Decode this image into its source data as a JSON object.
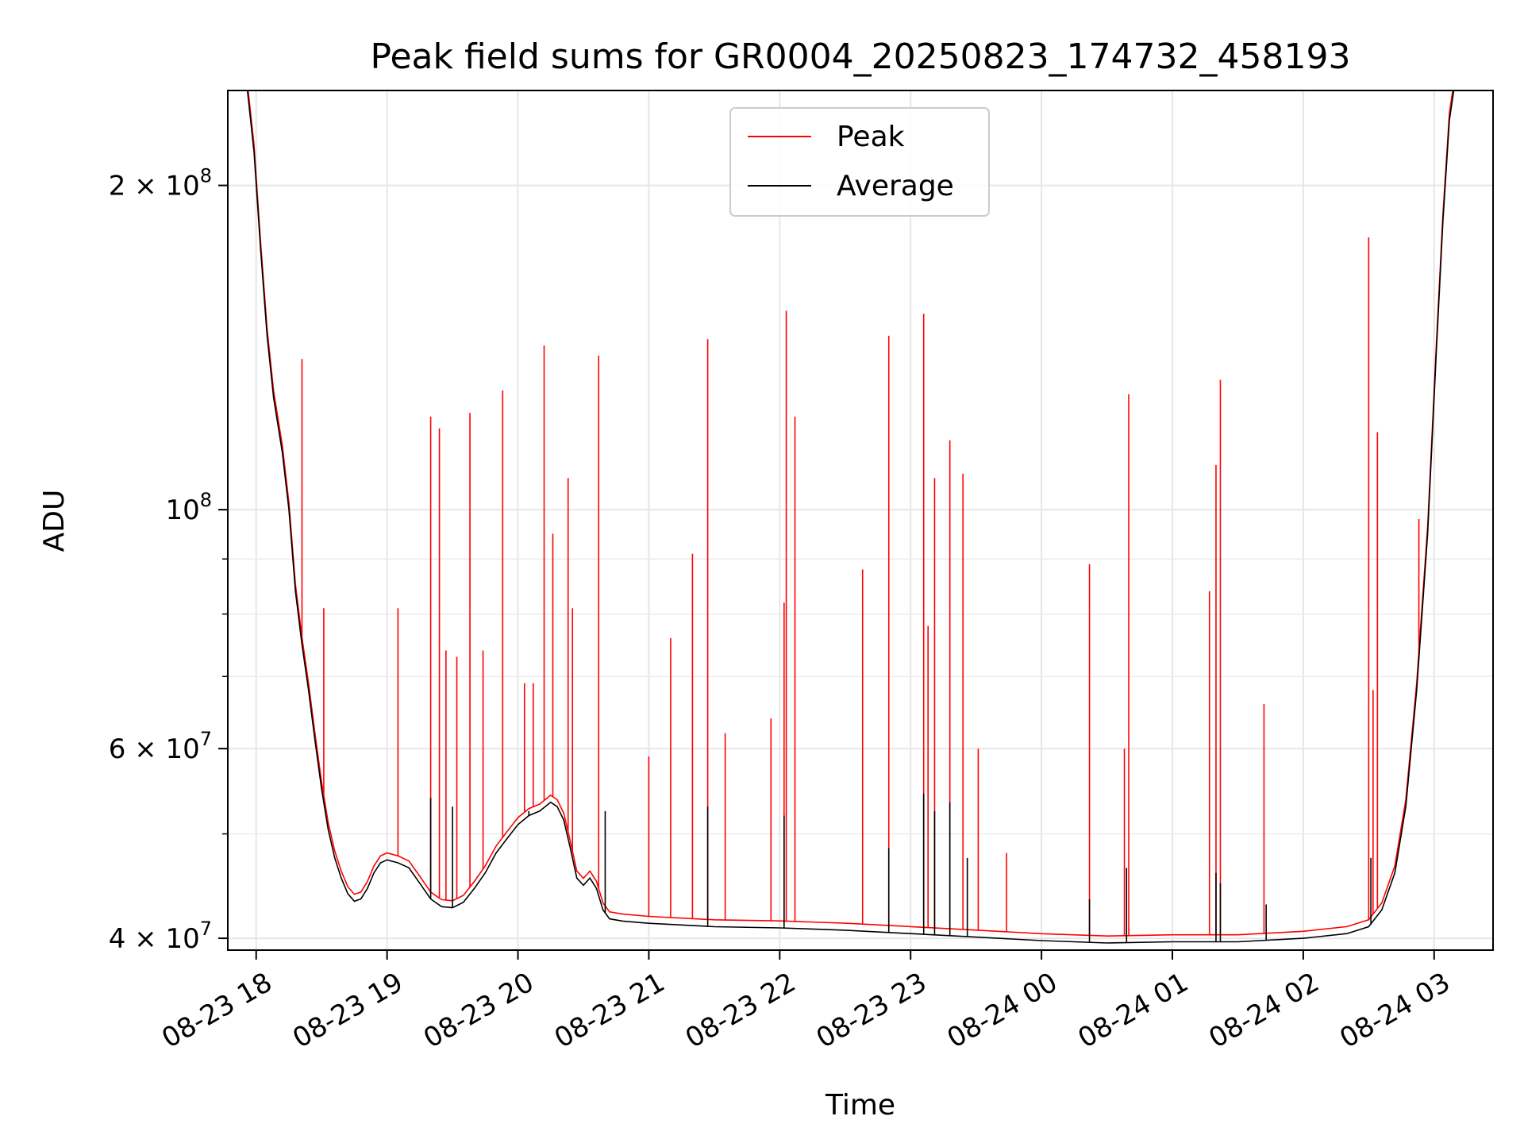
{
  "chart_data": {
    "type": "line",
    "title": "Peak field sums for GR0004_20250823_174732_458193",
    "xlabel": "Time",
    "ylabel": "ADU",
    "yscale": "log",
    "xlim": [
      "2025-08-23 17:47",
      "2025-08-24 03:27"
    ],
    "ylim": [
      39000000,
      245000000
    ],
    "grid": true,
    "legend_position": "top-center",
    "x_ticks": [
      {
        "t": "2025-08-23 18:00",
        "label": "08-23 18"
      },
      {
        "t": "2025-08-23 19:00",
        "label": "08-23 19"
      },
      {
        "t": "2025-08-23 20:00",
        "label": "08-23 20"
      },
      {
        "t": "2025-08-23 21:00",
        "label": "08-23 21"
      },
      {
        "t": "2025-08-23 22:00",
        "label": "08-23 22"
      },
      {
        "t": "2025-08-23 23:00",
        "label": "08-23 23"
      },
      {
        "t": "2025-08-24 00:00",
        "label": "08-24 00"
      },
      {
        "t": "2025-08-24 01:00",
        "label": "08-24 01"
      },
      {
        "t": "2025-08-24 02:00",
        "label": "08-24 02"
      },
      {
        "t": "2025-08-24 03:00",
        "label": "08-24 03"
      }
    ],
    "y_major_ticks": [
      {
        "v": 40000000,
        "mant": "4",
        "exp": "7"
      },
      {
        "v": 60000000,
        "mant": "6",
        "exp": "7"
      },
      {
        "v": 100000000,
        "mant": "",
        "exp": "8"
      },
      {
        "v": 200000000,
        "mant": "2",
        "exp": "8"
      }
    ],
    "y_minor_ticks": [
      50000000,
      70000000,
      80000000,
      90000000
    ],
    "series": [
      {
        "name": "Average",
        "color": "#000000",
        "points": [
          [
            "2025-08-23 17:47",
            245000000
          ],
          [
            "2025-08-23 17:56",
            245000000
          ],
          [
            "2025-08-23 17:59",
            215000000
          ],
          [
            "2025-08-23 18:02",
            175000000
          ],
          [
            "2025-08-23 18:05",
            145000000
          ],
          [
            "2025-08-23 18:08",
            127000000
          ],
          [
            "2025-08-23 18:12",
            113000000
          ],
          [
            "2025-08-23 18:15",
            100000000
          ],
          [
            "2025-08-23 18:18",
            84000000
          ],
          [
            "2025-08-23 18:21",
            75000000
          ],
          [
            "2025-08-23 18:24",
            68000000
          ],
          [
            "2025-08-23 18:27",
            61000000
          ],
          [
            "2025-08-23 18:30",
            55000000
          ],
          [
            "2025-08-23 18:33",
            50500000
          ],
          [
            "2025-08-23 18:36",
            47500000
          ],
          [
            "2025-08-23 18:39",
            45500000
          ],
          [
            "2025-08-23 18:42",
            44000000
          ],
          [
            "2025-08-23 18:45",
            43300000
          ],
          [
            "2025-08-23 18:48",
            43500000
          ],
          [
            "2025-08-23 18:51",
            44500000
          ],
          [
            "2025-08-23 18:54",
            46000000
          ],
          [
            "2025-08-23 18:57",
            47000000
          ],
          [
            "2025-08-23 19:00",
            47300000
          ],
          [
            "2025-08-23 19:05",
            47000000
          ],
          [
            "2025-08-23 19:10",
            46500000
          ],
          [
            "2025-08-23 19:15",
            45000000
          ],
          [
            "2025-08-23 19:20",
            43500000
          ],
          [
            "2025-08-23 19:25",
            42800000
          ],
          [
            "2025-08-23 19:30",
            42700000
          ],
          [
            "2025-08-23 19:35",
            43200000
          ],
          [
            "2025-08-23 19:40",
            44500000
          ],
          [
            "2025-08-23 19:45",
            46000000
          ],
          [
            "2025-08-23 19:50",
            48000000
          ],
          [
            "2025-08-23 19:55",
            49500000
          ],
          [
            "2025-08-23 20:00",
            51000000
          ],
          [
            "2025-08-23 20:05",
            52000000
          ],
          [
            "2025-08-23 20:10",
            52500000
          ],
          [
            "2025-08-23 20:15",
            53500000
          ],
          [
            "2025-08-23 20:18",
            53000000
          ],
          [
            "2025-08-23 20:21",
            51500000
          ],
          [
            "2025-08-23 20:24",
            48500000
          ],
          [
            "2025-08-23 20:27",
            45500000
          ],
          [
            "2025-08-23 20:30",
            44800000
          ],
          [
            "2025-08-23 20:33",
            45500000
          ],
          [
            "2025-08-23 20:36",
            44500000
          ],
          [
            "2025-08-23 20:39",
            42500000
          ],
          [
            "2025-08-23 20:42",
            41700000
          ],
          [
            "2025-08-23 20:48",
            41500000
          ],
          [
            "2025-08-23 21:00",
            41300000
          ],
          [
            "2025-08-23 21:30",
            41000000
          ],
          [
            "2025-08-23 22:00",
            40900000
          ],
          [
            "2025-08-23 22:30",
            40700000
          ],
          [
            "2025-08-23 23:00",
            40400000
          ],
          [
            "2025-08-23 23:30",
            40100000
          ],
          [
            "2025-08-24 00:00",
            39800000
          ],
          [
            "2025-08-24 00:30",
            39600000
          ],
          [
            "2025-08-24 01:00",
            39700000
          ],
          [
            "2025-08-24 01:30",
            39700000
          ],
          [
            "2025-08-24 02:00",
            40000000
          ],
          [
            "2025-08-24 02:20",
            40400000
          ],
          [
            "2025-08-24 02:30",
            41000000
          ],
          [
            "2025-08-24 02:36",
            42500000
          ],
          [
            "2025-08-24 02:42",
            46000000
          ],
          [
            "2025-08-24 02:47",
            53000000
          ],
          [
            "2025-08-24 02:52",
            68000000
          ],
          [
            "2025-08-24 02:57",
            95000000
          ],
          [
            "2025-08-24 03:01",
            140000000
          ],
          [
            "2025-08-24 03:04",
            185000000
          ],
          [
            "2025-08-24 03:07",
            230000000
          ],
          [
            "2025-08-24 03:09",
            245000000
          ],
          [
            "2025-08-24 03:27",
            245000000
          ]
        ],
        "spikes": [
          [
            "2025-08-23 19:20",
            54000000
          ],
          [
            "2025-08-23 19:30",
            53000000
          ],
          [
            "2025-08-23 20:05",
            52500000
          ],
          [
            "2025-08-23 20:40",
            52500000
          ],
          [
            "2025-08-23 21:27",
            53000000
          ],
          [
            "2025-08-23 22:02",
            52000000
          ],
          [
            "2025-08-23 22:50",
            48500000
          ],
          [
            "2025-08-23 23:06",
            54500000
          ],
          [
            "2025-08-23 23:11",
            52500000
          ],
          [
            "2025-08-23 23:18",
            53500000
          ],
          [
            "2025-08-23 23:26",
            47500000
          ],
          [
            "2025-08-24 00:22",
            43500000
          ],
          [
            "2025-08-24 00:39",
            46500000
          ],
          [
            "2025-08-24 01:20",
            46000000
          ],
          [
            "2025-08-24 01:22",
            45000000
          ],
          [
            "2025-08-24 01:43",
            43000000
          ],
          [
            "2025-08-24 02:31",
            47500000
          ]
        ]
      },
      {
        "name": "Peak",
        "color": "#ff0000",
        "offset_ratio": 1.015,
        "spikes": [
          [
            "2025-08-23 18:21",
            138000000
          ],
          [
            "2025-08-23 18:31",
            81000000
          ],
          [
            "2025-08-23 19:05",
            81000000
          ],
          [
            "2025-08-23 19:20",
            122000000
          ],
          [
            "2025-08-23 19:24",
            119000000
          ],
          [
            "2025-08-23 19:27",
            74000000
          ],
          [
            "2025-08-23 19:32",
            73000000
          ],
          [
            "2025-08-23 19:38",
            123000000
          ],
          [
            "2025-08-23 19:44",
            74000000
          ],
          [
            "2025-08-23 19:53",
            129000000
          ],
          [
            "2025-08-23 20:03",
            69000000
          ],
          [
            "2025-08-23 20:07",
            69000000
          ],
          [
            "2025-08-23 20:12",
            142000000
          ],
          [
            "2025-08-23 20:16",
            95000000
          ],
          [
            "2025-08-23 20:23",
            107000000
          ],
          [
            "2025-08-23 20:25",
            81000000
          ],
          [
            "2025-08-23 20:37",
            139000000
          ],
          [
            "2025-08-23 21:00",
            59000000
          ],
          [
            "2025-08-23 21:10",
            76000000
          ],
          [
            "2025-08-23 21:20",
            91000000
          ],
          [
            "2025-08-23 21:27",
            144000000
          ],
          [
            "2025-08-23 21:35",
            62000000
          ],
          [
            "2025-08-23 21:56",
            64000000
          ],
          [
            "2025-08-23 22:02",
            82000000
          ],
          [
            "2025-08-23 22:03",
            153000000
          ],
          [
            "2025-08-23 22:07",
            122000000
          ],
          [
            "2025-08-23 22:38",
            88000000
          ],
          [
            "2025-08-23 22:50",
            145000000
          ],
          [
            "2025-08-23 23:06",
            152000000
          ],
          [
            "2025-08-23 23:08",
            78000000
          ],
          [
            "2025-08-23 23:11",
            107000000
          ],
          [
            "2025-08-23 23:18",
            116000000
          ],
          [
            "2025-08-23 23:24",
            108000000
          ],
          [
            "2025-08-23 23:31",
            60000000
          ],
          [
            "2025-08-23 23:44",
            48000000
          ],
          [
            "2025-08-24 00:22",
            89000000
          ],
          [
            "2025-08-24 00:38",
            60000000
          ],
          [
            "2025-08-24 00:40",
            128000000
          ],
          [
            "2025-08-24 01:17",
            84000000
          ],
          [
            "2025-08-24 01:20",
            110000000
          ],
          [
            "2025-08-24 01:22",
            132000000
          ],
          [
            "2025-08-24 01:42",
            66000000
          ],
          [
            "2025-08-24 02:30",
            179000000
          ],
          [
            "2025-08-24 02:32",
            68000000
          ],
          [
            "2025-08-24 02:34",
            118000000
          ],
          [
            "2025-08-24 02:45",
            50000000
          ],
          [
            "2025-08-24 02:53",
            98000000
          ]
        ]
      }
    ]
  }
}
